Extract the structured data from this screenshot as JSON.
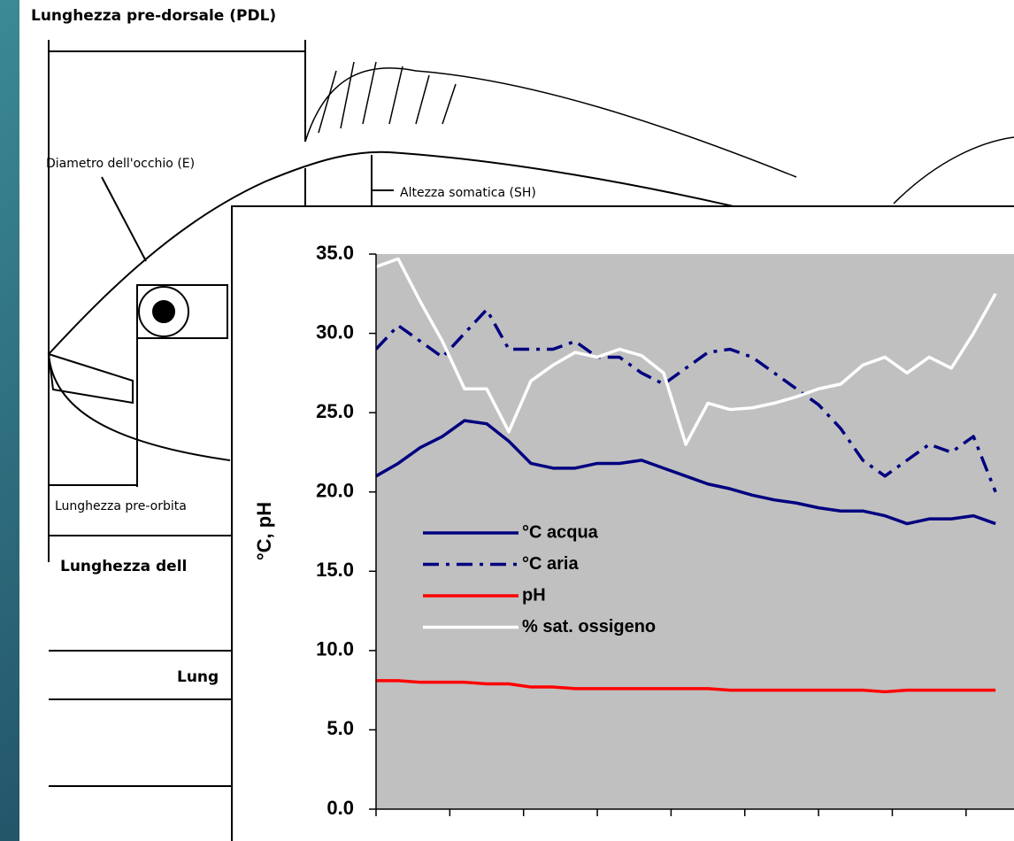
{
  "diagram": {
    "labels": [
      "Lunghezza pre-dorsale (PDL)",
      "Diametro dell'occhio (E)",
      "Altezza somatica (SH)",
      "Lunghezza pre-orbita",
      "Lunghezza dell",
      "Lung"
    ]
  },
  "chart_data": {
    "type": "line",
    "y_label": "°C,  pH",
    "x": [
      0,
      3,
      6,
      9,
      12,
      15,
      18,
      21,
      24,
      27,
      30,
      33,
      36,
      39,
      42,
      45,
      48,
      51,
      54,
      57,
      60,
      63,
      66,
      69,
      72,
      75,
      78,
      81,
      84
    ],
    "xlim": [
      0,
      86.5
    ],
    "xticks": [
      0,
      10,
      20,
      30,
      40,
      50,
      60,
      70,
      80
    ],
    "ylim": [
      0,
      35
    ],
    "yticks": [
      {
        "value": 0,
        "label": "0.0"
      },
      {
        "value": 5,
        "label": "5.0"
      },
      {
        "value": 10,
        "label": "10.0"
      },
      {
        "value": 15,
        "label": "15.0"
      },
      {
        "value": 20,
        "label": "20.0"
      },
      {
        "value": 25,
        "label": "25.0"
      },
      {
        "value": 30,
        "label": "30.0"
      },
      {
        "value": 35,
        "label": "35.0"
      }
    ],
    "legend": "lower-left",
    "series": [
      {
        "name": "°C acqua",
        "color": "#000080",
        "dash": "solid",
        "values": [
          21,
          21.8,
          22.8,
          23.5,
          24.5,
          24.3,
          23.2,
          21.8,
          21.5,
          21.5,
          21.8,
          21.8,
          22,
          21.5,
          21,
          20.5,
          20.2,
          19.8,
          19.5,
          19.3,
          19,
          18.8,
          18.8,
          18.5,
          18,
          18.3,
          18.3,
          18.5,
          18
        ]
      },
      {
        "name": "°C aria",
        "color": "#000080",
        "dash": "dashdot",
        "values": [
          29,
          30.5,
          29.5,
          28.5,
          30,
          31.5,
          29,
          29,
          29,
          29.5,
          28.5,
          28.5,
          27.5,
          26.8,
          27.8,
          28.8,
          29,
          28.5,
          27.5,
          26.5,
          25.5,
          24,
          22,
          21,
          22,
          23,
          22.5,
          23.5,
          20
        ]
      },
      {
        "name": "pH",
        "color": "#ff0000",
        "dash": "solid",
        "values": [
          8.1,
          8.1,
          8,
          8,
          8,
          7.9,
          7.9,
          7.7,
          7.7,
          7.6,
          7.6,
          7.6,
          7.6,
          7.6,
          7.6,
          7.6,
          7.5,
          7.5,
          7.5,
          7.5,
          7.5,
          7.5,
          7.5,
          7.4,
          7.5,
          7.5,
          7.5,
          7.5,
          7.5
        ]
      },
      {
        "name": "% sat. ossigeno",
        "color": "#ffffff",
        "dash": "solid",
        "values": [
          34.2,
          34.7,
          32,
          29.5,
          26.5,
          26.5,
          23.8,
          27,
          28,
          28.8,
          28.5,
          29,
          28.6,
          27.5,
          23,
          25.6,
          25.2,
          25.3,
          25.6,
          26,
          26.5,
          26.8,
          28,
          28.5,
          27.5,
          28.5,
          27.8,
          30,
          32.5
        ]
      }
    ]
  }
}
